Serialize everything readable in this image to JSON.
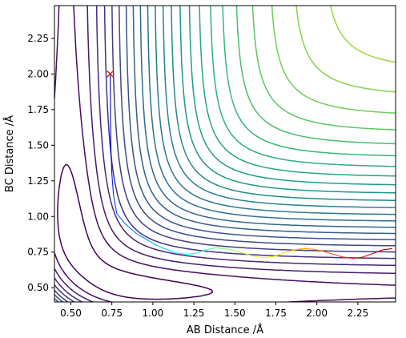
{
  "chart_data": {
    "type": "contour",
    "xlabel": "AB Distance /Å",
    "ylabel": "BC Distance /Å",
    "xlim": [
      0.4,
      2.48
    ],
    "ylim": [
      0.4,
      2.48
    ],
    "xticks": [
      0.5,
      0.75,
      1.0,
      1.25,
      1.5,
      1.75,
      2.0,
      2.25
    ],
    "xtick_labels": [
      "0.50",
      "0.75",
      "1.00",
      "1.25",
      "1.50",
      "1.75",
      "2.00",
      "2.25"
    ],
    "yticks": [
      0.5,
      0.75,
      1.0,
      1.25,
      1.5,
      1.75,
      2.0,
      2.25
    ],
    "ytick_labels": [
      "0.50",
      "0.75",
      "1.00",
      "1.25",
      "1.50",
      "1.75",
      "2.00",
      "2.25"
    ],
    "colormap": "viridis",
    "grid": false,
    "start_marker": {
      "x": 0.74,
      "y": 2.0,
      "symbol": "x",
      "color": "#e8201a"
    },
    "trajectory": {
      "colormap": "jet",
      "points": [
        [
          0.74,
          2.0
        ],
        [
          0.741,
          1.85
        ],
        [
          0.742,
          1.65
        ],
        [
          0.745,
          1.45
        ],
        [
          0.75,
          1.3
        ],
        [
          0.76,
          1.15
        ],
        [
          0.78,
          1.02
        ],
        [
          0.83,
          0.95
        ],
        [
          0.9,
          0.88
        ],
        [
          0.96,
          0.84
        ],
        [
          1.02,
          0.8
        ],
        [
          1.08,
          0.77
        ],
        [
          1.14,
          0.745
        ],
        [
          1.2,
          0.735
        ],
        [
          1.26,
          0.74
        ],
        [
          1.32,
          0.765
        ],
        [
          1.38,
          0.78
        ],
        [
          1.44,
          0.775
        ],
        [
          1.5,
          0.76
        ],
        [
          1.56,
          0.74
        ],
        [
          1.62,
          0.72
        ],
        [
          1.68,
          0.71
        ],
        [
          1.74,
          0.72
        ],
        [
          1.8,
          0.745
        ],
        [
          1.86,
          0.765
        ],
        [
          1.92,
          0.775
        ],
        [
          1.98,
          0.77
        ],
        [
          2.04,
          0.755
        ],
        [
          2.1,
          0.735
        ],
        [
          2.16,
          0.715
        ],
        [
          2.22,
          0.705
        ],
        [
          2.28,
          0.715
        ],
        [
          2.34,
          0.74
        ],
        [
          2.4,
          0.765
        ],
        [
          2.46,
          0.775
        ]
      ]
    },
    "contour_levels": 28
  }
}
